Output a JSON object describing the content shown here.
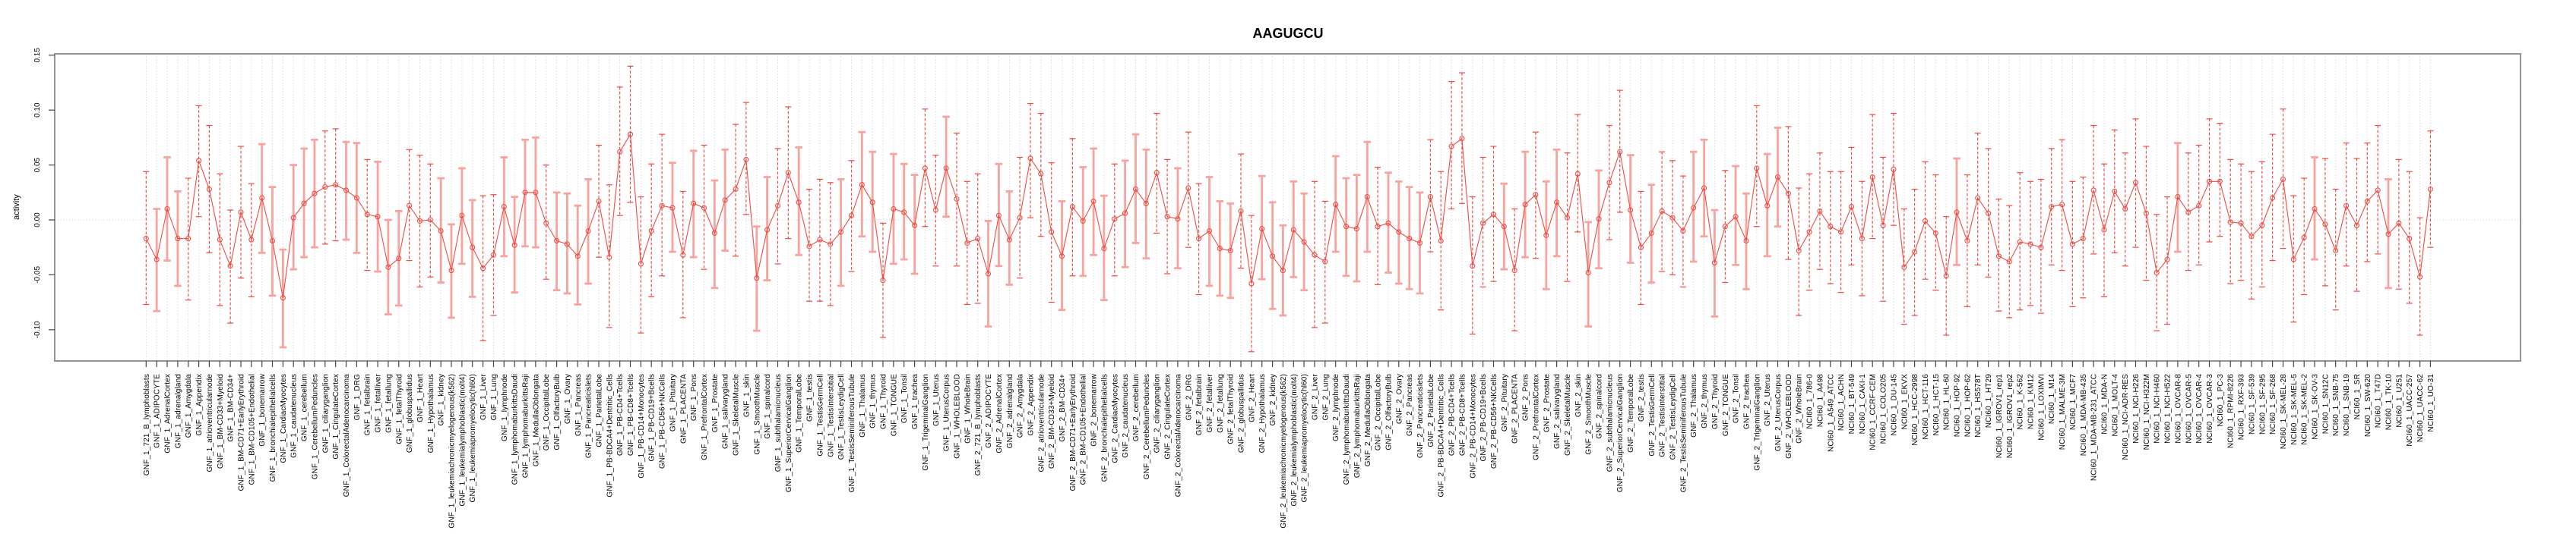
{
  "page": {
    "background": "#ffffff"
  },
  "chart_data": {
    "type": "line",
    "subtype": "error-bar-series",
    "title": "AAGUGCU",
    "xlabel": "",
    "ylabel": "activity",
    "ylim": [
      -0.129,
      0.151
    ],
    "ytick_values": [
      0.15,
      0.1,
      0.05,
      0.0,
      -0.05,
      -0.1
    ],
    "ytick_labels": [
      "0.15",
      "0.10",
      "0.05",
      "0.00",
      "-0.05",
      "-0.10"
    ],
    "grid": {
      "vertical": "dotted gridline at every category",
      "horizontal": "dotted gridline at y=0 only"
    },
    "legend": "none",
    "marker": "open-circle",
    "error_bars": true,
    "colors": {
      "series_line": "#ee4b43",
      "marker": "#ee4b43",
      "error_bar_solid": "#f8a39e",
      "error_bar_dashed": "#ee4b43",
      "frame": "#949494",
      "grid": "#c9c9c9",
      "axis_tick": "#444444",
      "text": "#000000",
      "background": "#ffffff"
    },
    "categories": [
      "GNF_1_721_B_lymphoblasts",
      "GNF_1_ADIPOCYTE",
      "GNF_1_AdrenalCortex",
      "GNF_1_adrenalgland",
      "GNF_1_Amygdala",
      "GNF_1_Appendix",
      "GNF_1_atrioventricularnode",
      "GNF_1_BM-CD33+Myeloid",
      "GNF_1_BM-CD34+",
      "GNF_1_BM-CD71+EarlyErythroid",
      "GNF_1_BM-CD105+Endothelial",
      "GNF_1_bonemarrow",
      "GNF_1_bronchialepithelialcells",
      "GNF_1_CardiacMyocytes",
      "GNF_1_caudatenucleus",
      "GNF_1_cerebellum",
      "GNF_1_CerebellumPeduncles",
      "GNF_1_ciliaryganglion",
      "GNF_1_CingulateCortex",
      "GNF_1_ColorectalAdenocarcinoma",
      "GNF_1_DRG",
      "GNF_1_fetalbrain",
      "GNF_1_fetalliver",
      "GNF_1_fetallung",
      "GNF_1_fetalThyroid",
      "GNF_1_globuspallidus",
      "GNF_1_Heart",
      "GNF_1_Hypothalamus",
      "GNF_1_kidney",
      "GNF_1_leukemiachronicmyelogenous(k562)",
      "GNF_1_leukemialymphoblastic(molt4)",
      "GNF_1_leukemiapromyelocytic(hl60)",
      "GNF_1_Liver",
      "GNF_1_Lung",
      "GNF_1_lymphnode",
      "GNF_1_lymphomaburkittsDaudi",
      "GNF_1_lymphomaburkittsRaji",
      "GNF_1_MedullaOblongata",
      "GNF_1_OccipitalLobe",
      "GNF_1_OlfactoryBulb",
      "GNF_1_Ovary",
      "GNF_1_Pancreas",
      "GNF_1_Pancreaticislets",
      "GNF_1_ParietalLobe",
      "GNF_1_PB-BDCA4+Dentritic_Cells",
      "GNF_1_PB-CD4+Tcells",
      "GNF_1_PB-CD8+Tcells",
      "GNF_1_PB-CD14+Monocytes",
      "GNF_1_PB-CD19+Bcells",
      "GNF_1_PB-CD56+NKCells",
      "GNF_1_Pituitary",
      "GNF_1_PLACENTA",
      "GNF_1_Pons",
      "GNF_1_PrefrontalCortex",
      "GNF_1_Prostate",
      "GNF_1_salivarygland",
      "GNF_1_SkeletalMuscle",
      "GNF_1_skin",
      "GNF_1_SmoothMuscle",
      "GNF_1_spinalcord",
      "GNF_1_subthalamicnucleus",
      "GNF_1_SuperiorCervicalGanglion",
      "GNF_1_TemporalLobe",
      "GNF_1_testis",
      "GNF_1_TestisGermCell",
      "GNF_1_TestisInterstitial",
      "GNF_1_TestisLeydigCell",
      "GNF_1_TestisSeminiferousTubule",
      "GNF_1_Thalamus",
      "GNF_1_thymus",
      "GNF_1_Thyroid",
      "GNF_1_TONGUE",
      "GNF_1_Tonsil",
      "GNF_1_trachea",
      "GNF_1_TrigeminalGanglion",
      "GNF_1_Uterus",
      "GNF_1_UterusCorpus",
      "GNF_1_WHOLEBLOOD",
      "GNF_1_WholeBrain",
      "GNF_2_721_B_lymphoblasts",
      "GNF_2_ADIPOCYTE",
      "GNF_2_AdrenalCortex",
      "GNF_2_adrenalgland",
      "GNF_2_Amygdala",
      "GNF_2_Appendix",
      "GNF_2_atrioventricularnode",
      "GNF_2_BM-CD33+Myeloid",
      "GNF_2_BM-CD34+",
      "GNF_2_BM-CD71+EarlyErythroid",
      "GNF_2_BM-CD105+Endothelial",
      "GNF_2_bonemarrow",
      "GNF_2_bronchialepithelialcells",
      "GNF_2_CardiacMyocytes",
      "GNF_2_caudatenucleus",
      "GNF_2_cerebellum",
      "GNF_2_CerebellumPeduncles",
      "GNF_2_ciliaryganglion",
      "GNF_2_CingulateCortex",
      "GNF_2_ColorectalAdenocarcinoma",
      "GNF_2_DRG",
      "GNF_2_fetalbrain",
      "GNF_2_fetalliver",
      "GNF_2_fetallung",
      "GNF_2_fetalThyroid",
      "GNF_2_globuspallidus",
      "GNF_2_Heart",
      "GNF_2_Hypothalamus",
      "GNF_2_kidney",
      "GNF_2_leukemiachronicmyelogenous(k562)",
      "GNF_2_leukemialymphoblastic(molt4)",
      "GNF_2_leukemiapromyelocytic(hl60)",
      "GNF_2_Liver",
      "GNF_2_Lung",
      "GNF_2_lymphnode",
      "GNF_2_lymphomaburkittsDaudi",
      "GNF_2_lymphomaburkittsRaji",
      "GNF_2_MedullaOblongata",
      "GNF_2_OccipitalLobe",
      "GNF_2_OlfactoryBulb",
      "GNF_2_Ovary",
      "GNF_2_Pancreas",
      "GNF_2_Pancreaticislets",
      "GNF_2_ParietalLobe",
      "GNF_2_PB-BDCA4+Dentritic_Cells",
      "GNF_2_PB-CD4+Tcells",
      "GNF_2_PB-CD8+Tcells",
      "GNF_2_PB-CD14+Monocytes",
      "GNF_2_PB-CD19+Bcells",
      "GNF_2_PB-CD56+NKCells",
      "GNF_2_Pituitary",
      "GNF_2_PLACENTA",
      "GNF_2_Pons",
      "GNF_2_PrefrontalCortex",
      "GNF_2_Prostate",
      "GNF_2_salivarygland",
      "GNF_2_SkeletalMuscle",
      "GNF_2_skin",
      "GNF_2_SmoothMuscle",
      "GNF_2_spinalcord",
      "GNF_2_subthalamicnucleus",
      "GNF_2_SuperiorCervicalGanglion",
      "GNF_2_TemporalLobe",
      "GNF_2_testis",
      "GNF_2_TestisGermCell",
      "GNF_2_TestisInterstitial",
      "GNF_2_TestisLeydigCell",
      "GNF_2_TestisSeminiferousTubule",
      "GNF_2_Thalamus",
      "GNF_2_thymus",
      "GNF_2_Thyroid",
      "GNF_2_TONGUE",
      "GNF_2_Tonsil",
      "GNF_2_trachea",
      "GNF_2_TrigeminalGanglion",
      "GNF_2_Uterus",
      "GNF_2_UterusCorpus",
      "GNF_2_WHOLEBLOOD",
      "GNF_2_WholeBrain",
      "NCI60_1_786-0",
      "NCI60_1_A498",
      "NCI60_1_A549_ATCC",
      "NCI60_1_ACHN",
      "NCI60_1_BT-549",
      "NCI60_1_CAKI-1",
      "NCI60_1_CCRF-CEM",
      "NCI60_1_COLO205",
      "NCI60_1_DU-145",
      "NCI60_1_EKVX",
      "NCI60_1_HCC-2998",
      "NCI60_1_HCT-116",
      "NCI60_1_HCT-15",
      "NCI60_1_HL-60",
      "NCI60_1_HOP-92",
      "NCI60_1_HOP-62",
      "NCI60_1_HS578T",
      "NCI60_1_HT29",
      "NCI60_1_IGROV1_rep1",
      "NCI60_1_IGROV1_rep2",
      "NCI60_1_K-562",
      "NCI60_1_KM12",
      "NCI60_1_LOXIMVI",
      "NCI60_1_M14",
      "NCI60_1_MALME-3M",
      "NCI60_1_MCF7",
      "NCI60_1_MDA-MB-435",
      "NCI60_1_MDA-MB-231_ATCC",
      "NCI60_1_MDA-N",
      "NCI60_1_MOLT-4",
      "NCI60_1_NCI-ADR-RES",
      "NCI60_1_NCI-H226",
      "NCI60_1_NCI-H322M",
      "NCI60_1_NCI-H460",
      "NCI60_1_NCI-H522",
      "NCI60_1_OVCAR-8",
      "NCI60_1_OVCAR-5",
      "NCI60_1_OVCAR-4",
      "NCI60_1_OVCAR-3",
      "NCI60_1_PC-3",
      "NCI60_1_RPMI-8226",
      "NCI60_1_RXF-393",
      "NCI60_1_SF-539",
      "NCI60_1_SF-295",
      "NCI60_1_SF-268",
      "NCI60_1_SK-MEL-28",
      "NCI60_1_SK-MEL-5",
      "NCI60_1_SK-MEL-2",
      "NCI60_1_SK-OV-3",
      "NCI60_1_SN12C",
      "NCI60_1_SNB-75",
      "NCI60_1_SNB-19",
      "NCI60_1_SR",
      "NCI60_1_SW-620",
      "NCI60_1_T47D",
      "NCI60_1_TK-10",
      "NCI60_1_U251",
      "NCI60_1_UACC-257",
      "NCI60_1_UACC-62",
      "NCI60_1_UO-31"
    ],
    "series": [
      {
        "name": "activity",
        "values": [
          -0.017,
          -0.036,
          0.01,
          -0.017,
          -0.017,
          0.054,
          0.028,
          -0.018,
          -0.042,
          0.007,
          -0.018,
          0.02,
          -0.019,
          -0.071,
          0.002,
          0.015,
          0.024,
          0.03,
          0.032,
          0.027,
          0.02,
          0.005,
          0.003,
          -0.043,
          -0.035,
          0.013,
          -0.001,
          0.0,
          -0.01,
          -0.046,
          0.004,
          -0.025,
          -0.044,
          -0.032,
          0.012,
          -0.023,
          0.025,
          0.025,
          -0.003,
          -0.019,
          -0.022,
          -0.033,
          -0.01,
          0.017,
          -0.034,
          0.062,
          0.078,
          -0.04,
          -0.01,
          0.013,
          0.011,
          -0.032,
          0.015,
          0.011,
          -0.012,
          0.018,
          0.028,
          0.055,
          -0.053,
          -0.009,
          0.013,
          0.043,
          0.016,
          -0.024,
          -0.018,
          -0.022,
          -0.011,
          0.004,
          0.032,
          0.016,
          -0.055,
          0.01,
          0.007,
          -0.005,
          0.047,
          0.009,
          0.047,
          0.019,
          -0.021,
          -0.017,
          -0.049,
          0.004,
          -0.018,
          0.002,
          0.056,
          0.042,
          -0.011,
          -0.033,
          0.012,
          -0.001,
          0.017,
          -0.026,
          0.001,
          0.006,
          0.028,
          0.015,
          0.043,
          0.003,
          0.001,
          0.029,
          -0.017,
          -0.01,
          -0.026,
          -0.028,
          0.008,
          -0.058,
          -0.008,
          -0.033,
          -0.046,
          -0.009,
          -0.02,
          -0.032,
          -0.038,
          0.014,
          -0.006,
          -0.008,
          0.021,
          -0.006,
          -0.003,
          -0.011,
          -0.017,
          -0.021,
          0.021,
          -0.019,
          0.067,
          0.074,
          -0.042,
          -0.003,
          0.005,
          -0.006,
          -0.046,
          0.014,
          0.023,
          -0.014,
          0.016,
          0.002,
          0.042,
          -0.048,
          0.001,
          0.034,
          0.062,
          0.009,
          -0.025,
          -0.012,
          0.008,
          0.002,
          -0.01,
          0.011,
          0.029,
          -0.039,
          -0.006,
          0.003,
          -0.019,
          0.047,
          0.013,
          0.039,
          0.024,
          -0.028,
          -0.011,
          0.008,
          -0.006,
          -0.011,
          0.012,
          -0.017,
          0.039,
          -0.005,
          0.046,
          -0.043,
          -0.029,
          -0.001,
          -0.012,
          -0.051,
          0.007,
          -0.019,
          0.02,
          0.006,
          -0.033,
          -0.038,
          -0.02,
          -0.022,
          -0.025,
          0.012,
          0.014,
          -0.022,
          -0.017,
          0.027,
          -0.009,
          0.026,
          0.01,
          0.034,
          0.006,
          -0.048,
          -0.036,
          0.021,
          0.007,
          0.013,
          0.035,
          0.035,
          -0.002,
          -0.003,
          -0.015,
          -0.005,
          0.02,
          0.037,
          -0.036,
          -0.016,
          0.01,
          -0.004,
          -0.028,
          0.013,
          -0.005,
          0.017,
          0.027,
          -0.013,
          -0.003,
          -0.017,
          -0.052,
          0.028
        ],
        "ci_low": [
          -0.077,
          -0.083,
          -0.037,
          -0.06,
          -0.073,
          0.003,
          -0.03,
          -0.078,
          -0.094,
          -0.053,
          -0.07,
          -0.03,
          -0.069,
          -0.116,
          -0.045,
          -0.034,
          -0.025,
          -0.022,
          -0.019,
          -0.018,
          -0.03,
          -0.046,
          -0.047,
          -0.086,
          -0.078,
          -0.037,
          -0.061,
          -0.052,
          -0.057,
          -0.089,
          -0.04,
          -0.07,
          -0.11,
          -0.087,
          -0.033,
          -0.066,
          -0.024,
          -0.025,
          -0.054,
          -0.064,
          -0.067,
          -0.077,
          -0.058,
          -0.034,
          -0.098,
          0.004,
          0.016,
          -0.103,
          -0.07,
          -0.051,
          -0.029,
          -0.089,
          -0.034,
          -0.045,
          -0.062,
          -0.028,
          -0.033,
          0.005,
          -0.101,
          -0.055,
          -0.04,
          -0.017,
          -0.032,
          -0.074,
          -0.074,
          -0.078,
          -0.06,
          -0.047,
          -0.015,
          -0.029,
          -0.107,
          -0.04,
          -0.036,
          -0.049,
          -0.006,
          -0.042,
          0.003,
          -0.042,
          -0.077,
          -0.076,
          -0.097,
          -0.042,
          -0.059,
          -0.053,
          0.002,
          -0.015,
          -0.075,
          -0.082,
          -0.051,
          -0.051,
          -0.032,
          -0.073,
          -0.051,
          -0.043,
          -0.021,
          -0.035,
          -0.012,
          -0.049,
          -0.044,
          -0.025,
          -0.068,
          -0.06,
          -0.069,
          -0.071,
          -0.044,
          -0.12,
          -0.054,
          -0.081,
          -0.087,
          -0.052,
          -0.064,
          -0.098,
          -0.094,
          -0.029,
          -0.051,
          -0.056,
          -0.029,
          -0.059,
          -0.048,
          -0.058,
          -0.063,
          -0.067,
          -0.029,
          -0.082,
          0.01,
          0.015,
          -0.104,
          -0.061,
          -0.056,
          -0.045,
          -0.101,
          -0.034,
          -0.035,
          -0.063,
          -0.033,
          -0.056,
          -0.011,
          -0.097,
          -0.044,
          -0.018,
          0.007,
          -0.039,
          -0.077,
          -0.057,
          -0.047,
          -0.05,
          -0.061,
          -0.038,
          -0.015,
          -0.088,
          -0.057,
          -0.041,
          -0.063,
          -0.006,
          -0.033,
          -0.006,
          -0.036,
          -0.087,
          -0.064,
          -0.045,
          -0.058,
          -0.066,
          -0.041,
          -0.069,
          -0.017,
          -0.074,
          -0.005,
          -0.095,
          -0.087,
          -0.054,
          -0.064,
          -0.105,
          -0.041,
          -0.079,
          -0.041,
          -0.052,
          -0.083,
          -0.089,
          -0.082,
          -0.078,
          -0.085,
          -0.041,
          -0.046,
          -0.079,
          -0.071,
          -0.031,
          -0.07,
          -0.03,
          -0.042,
          -0.025,
          -0.055,
          -0.101,
          -0.095,
          -0.029,
          -0.046,
          -0.041,
          -0.02,
          -0.015,
          -0.058,
          -0.055,
          -0.072,
          -0.061,
          -0.037,
          -0.026,
          -0.093,
          -0.068,
          -0.036,
          -0.06,
          -0.082,
          -0.042,
          -0.065,
          -0.038,
          -0.031,
          -0.062,
          -0.063,
          -0.076,
          -0.105,
          -0.025
        ],
        "ci_high": [
          0.044,
          0.01,
          0.057,
          0.026,
          0.038,
          0.104,
          0.086,
          0.042,
          0.009,
          0.067,
          0.033,
          0.069,
          0.03,
          -0.027,
          0.05,
          0.065,
          0.073,
          0.081,
          0.083,
          0.071,
          0.07,
          0.055,
          0.053,
          0.0,
          0.008,
          0.064,
          0.059,
          0.051,
          0.038,
          -0.004,
          0.047,
          0.018,
          0.022,
          0.023,
          0.057,
          0.021,
          0.073,
          0.075,
          0.05,
          0.025,
          0.024,
          0.013,
          0.037,
          0.068,
          0.032,
          0.121,
          0.14,
          0.021,
          0.051,
          0.078,
          0.052,
          0.026,
          0.063,
          0.068,
          0.036,
          0.064,
          0.087,
          0.107,
          -0.006,
          0.039,
          0.065,
          0.103,
          0.066,
          0.028,
          0.037,
          0.034,
          0.037,
          0.054,
          0.08,
          0.062,
          -0.003,
          0.06,
          0.051,
          0.041,
          0.101,
          0.059,
          0.094,
          0.079,
          0.035,
          0.042,
          -0.001,
          0.051,
          0.026,
          0.057,
          0.106,
          0.097,
          0.052,
          0.017,
          0.074,
          0.048,
          0.065,
          0.022,
          0.051,
          0.054,
          0.078,
          0.064,
          0.097,
          0.055,
          0.047,
          0.08,
          0.033,
          0.039,
          0.017,
          0.015,
          0.06,
          0.004,
          0.04,
          0.016,
          -0.005,
          0.035,
          0.024,
          0.035,
          0.017,
          0.058,
          0.038,
          0.041,
          0.071,
          0.048,
          0.043,
          0.035,
          0.03,
          0.025,
          0.073,
          0.044,
          0.126,
          0.134,
          0.021,
          0.057,
          0.067,
          0.033,
          0.01,
          0.062,
          0.08,
          0.035,
          0.064,
          0.061,
          0.096,
          -0.002,
          0.045,
          0.086,
          0.118,
          0.059,
          0.026,
          0.032,
          0.062,
          0.054,
          0.04,
          0.062,
          0.073,
          0.009,
          0.045,
          0.049,
          0.024,
          0.104,
          0.06,
          0.084,
          0.085,
          0.029,
          0.042,
          0.061,
          0.044,
          0.044,
          0.066,
          0.035,
          0.096,
          0.057,
          0.097,
          0.01,
          0.028,
          0.053,
          0.041,
          0.003,
          0.056,
          0.041,
          0.079,
          0.065,
          0.019,
          0.013,
          0.043,
          0.035,
          0.037,
          0.065,
          0.073,
          0.035,
          0.039,
          0.086,
          0.051,
          0.082,
          0.061,
          0.092,
          0.067,
          0.005,
          0.021,
          0.07,
          0.061,
          0.068,
          0.092,
          0.088,
          0.055,
          0.051,
          0.044,
          0.053,
          0.078,
          0.101,
          0.022,
          0.038,
          0.057,
          0.056,
          0.028,
          0.07,
          0.056,
          0.07,
          0.086,
          0.037,
          0.055,
          0.044,
          0.002,
          0.081
        ]
      }
    ]
  }
}
